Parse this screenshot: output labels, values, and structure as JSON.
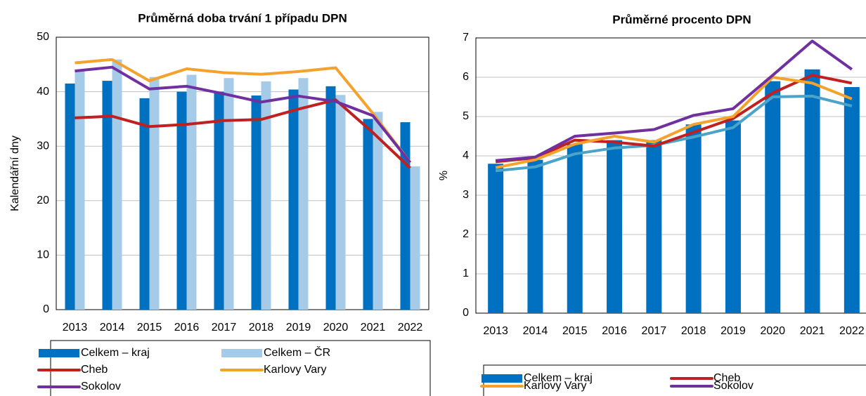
{
  "chart_data": [
    {
      "type": "bar_line",
      "title": "Průměrná doba trvání 1 případu DPN",
      "y_label": "Kalendářní dny",
      "categories": [
        "2013",
        "2014",
        "2015",
        "2016",
        "2017",
        "2018",
        "2019",
        "2020",
        "2021",
        "2022"
      ],
      "ylim": [
        0,
        50
      ],
      "yticks": [
        0,
        10,
        20,
        30,
        40,
        50
      ],
      "grid": true,
      "series": [
        {
          "name": "Celkem – kraj",
          "kind": "bar",
          "color": "#0070c0",
          "values": [
            41.5,
            42.0,
            38.8,
            40.0,
            40.0,
            39.3,
            40.4,
            41.0,
            35.0,
            34.4
          ]
        },
        {
          "name": "Celkem – ČR",
          "kind": "bar",
          "color": "#a6cbe8",
          "values": [
            44.0,
            45.9,
            42.7,
            43.1,
            42.5,
            41.9,
            42.5,
            39.4,
            36.3,
            26.3
          ]
        },
        {
          "name": "Cheb",
          "kind": "line",
          "color": "#c0201f",
          "values": [
            35.2,
            35.5,
            33.6,
            34.0,
            34.7,
            34.9,
            36.8,
            38.5,
            32.5,
            26.0
          ]
        },
        {
          "name": "Karlovy Vary",
          "kind": "line",
          "color": "#f5a22d",
          "values": [
            45.3,
            45.9,
            42.0,
            44.2,
            43.5,
            43.2,
            43.7,
            44.4,
            36.0,
            27.0
          ]
        },
        {
          "name": "Sokolov",
          "kind": "line",
          "color": "#7030a0",
          "values": [
            43.8,
            44.5,
            40.5,
            41.0,
            39.6,
            38.1,
            39.2,
            38.2,
            35.6,
            27.0
          ]
        }
      ]
    },
    {
      "type": "bar_line",
      "title": "Průměrné procento DPN",
      "y_label": "%",
      "categories": [
        "2013",
        "2014",
        "2015",
        "2016",
        "2017",
        "2018",
        "2019",
        "2020",
        "2021",
        "2022"
      ],
      "ylim": [
        0,
        7
      ],
      "yticks": [
        0,
        1,
        2,
        3,
        4,
        5,
        6,
        7
      ],
      "grid": true,
      "series": [
        {
          "name": "Celkem – kraj",
          "kind": "bar",
          "color": "#0070c0",
          "values": [
            3.8,
            3.9,
            4.3,
            4.4,
            4.4,
            4.8,
            4.9,
            5.9,
            6.2,
            5.75
          ]
        },
        {
          "kind": "line",
          "color": "#4aa3c8",
          "values": [
            3.62,
            3.72,
            4.05,
            4.2,
            4.27,
            4.48,
            4.72,
            5.5,
            5.52,
            5.27
          ]
        },
        {
          "name": "Cheb",
          "kind": "line",
          "color": "#c0201f",
          "values": [
            3.85,
            3.95,
            4.4,
            4.35,
            4.25,
            4.6,
            4.95,
            5.6,
            6.05,
            5.85
          ]
        },
        {
          "name": "Karlovy Vary",
          "kind": "line",
          "color": "#f5a22d",
          "values": [
            3.7,
            3.9,
            4.3,
            4.5,
            4.35,
            4.8,
            5.0,
            6.0,
            5.85,
            5.45
          ]
        },
        {
          "name": "Sokolov",
          "kind": "line",
          "color": "#7030a0",
          "values": [
            3.88,
            3.97,
            4.5,
            4.58,
            4.67,
            5.03,
            5.2,
            6.05,
            6.92,
            6.2
          ]
        }
      ]
    }
  ]
}
